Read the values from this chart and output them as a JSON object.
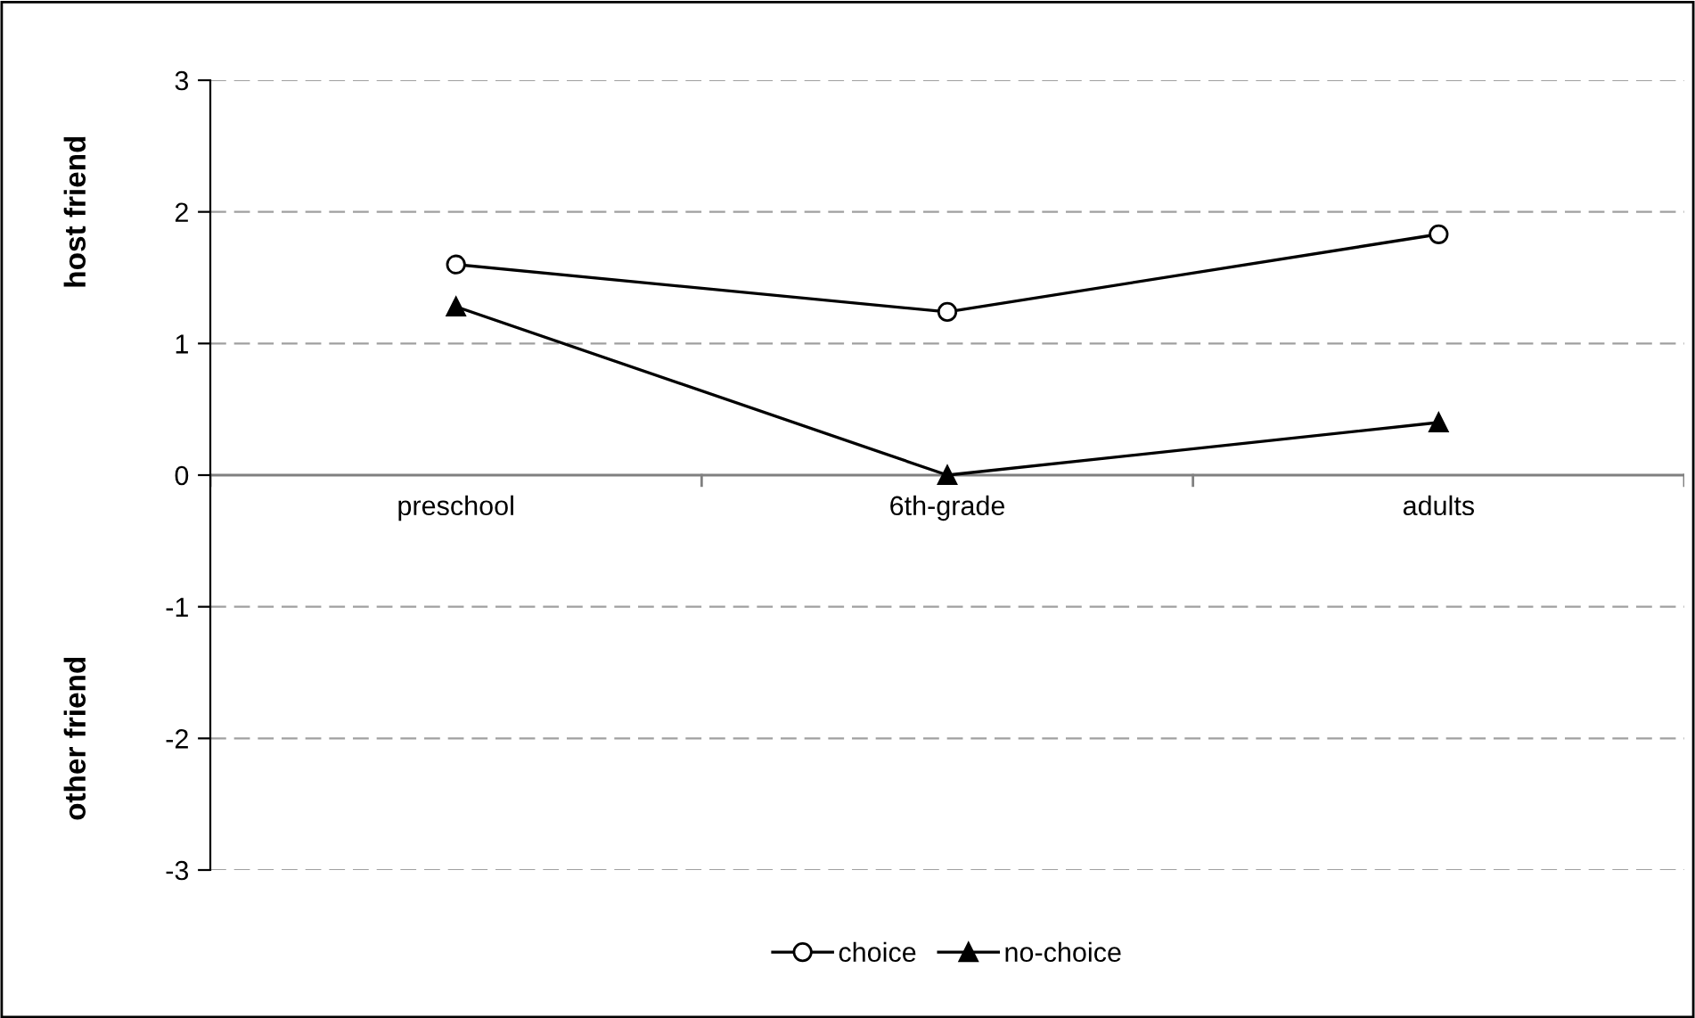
{
  "chart_data": {
    "type": "line",
    "categories": [
      "preschool",
      "6th-grade",
      "adults"
    ],
    "series": [
      {
        "name": "choice",
        "color": "#000000",
        "marker": "circle",
        "values": [
          1.6,
          1.24,
          1.83
        ]
      },
      {
        "name": "no-choice",
        "color": "#000000",
        "marker": "triangle",
        "values": [
          1.28,
          0.0,
          0.4
        ]
      }
    ],
    "ylim": [
      -3,
      3
    ],
    "yticks": [
      -3,
      -2,
      -1,
      0,
      1,
      2,
      3
    ],
    "annotations": [
      "host friend",
      "other friend"
    ],
    "grid": "y",
    "legend": "bottom",
    "line_style": "solid"
  }
}
